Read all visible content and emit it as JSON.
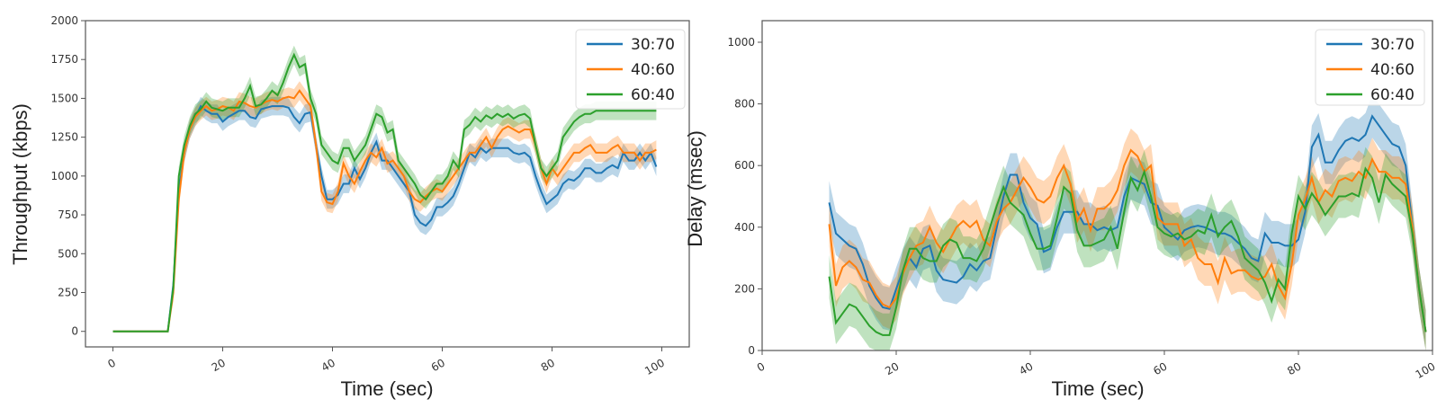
{
  "colors": {
    "30:70": "#1f77b4",
    "40:60": "#ff7f0e",
    "60:40": "#2ca02c"
  },
  "chart_data": [
    {
      "type": "line",
      "xlabel": "Time (sec)",
      "ylabel": "Throughput (kbps)",
      "xlim": [
        -5,
        105
      ],
      "ylim": [
        -100,
        2000
      ],
      "xticks": [
        0,
        20,
        40,
        60,
        80,
        100
      ],
      "yticks": [
        0,
        250,
        500,
        750,
        1000,
        1250,
        1500,
        1750,
        2000
      ],
      "grid": false,
      "legend_placement": "top-right",
      "x_start": 0,
      "band_halfwidth": 60,
      "series": [
        {
          "name": "30:70",
          "values": [
            0,
            0,
            0,
            0,
            0,
            0,
            0,
            0,
            0,
            0,
            0,
            300,
            900,
            1150,
            1300,
            1380,
            1450,
            1420,
            1400,
            1400,
            1350,
            1380,
            1400,
            1420,
            1420,
            1380,
            1370,
            1430,
            1440,
            1450,
            1450,
            1450,
            1440,
            1380,
            1340,
            1400,
            1410,
            1200,
            1000,
            850,
            850,
            880,
            950,
            950,
            1050,
            980,
            1050,
            1150,
            1220,
            1100,
            1100,
            1050,
            1000,
            950,
            900,
            750,
            700,
            680,
            720,
            800,
            800,
            830,
            870,
            950,
            1050,
            1150,
            1120,
            1180,
            1150,
            1180,
            1180,
            1180,
            1180,
            1150,
            1140,
            1150,
            1120,
            1000,
            900,
            820,
            850,
            880,
            950,
            980,
            970,
            1000,
            1050,
            1050,
            1020,
            1020,
            1050,
            1070,
            1050,
            1150,
            1100,
            1100,
            1150,
            1100,
            1150,
            1060
          ]
        },
        {
          "name": "40:60",
          "values": [
            0,
            0,
            0,
            0,
            0,
            0,
            0,
            0,
            0,
            0,
            0,
            250,
            850,
            1150,
            1300,
            1380,
            1420,
            1450,
            1420,
            1430,
            1450,
            1440,
            1420,
            1480,
            1470,
            1450,
            1440,
            1460,
            1480,
            1490,
            1480,
            1500,
            1510,
            1500,
            1550,
            1500,
            1450,
            1200,
            900,
            830,
            820,
            900,
            1080,
            1000,
            950,
            1030,
            1100,
            1150,
            1120,
            1180,
            1080,
            1100,
            1050,
            1000,
            900,
            850,
            830,
            870,
            900,
            920,
            900,
            950,
            1000,
            1050,
            1100,
            1150,
            1150,
            1200,
            1250,
            1180,
            1250,
            1300,
            1320,
            1300,
            1280,
            1300,
            1300,
            1200,
            1050,
            950,
            1050,
            1000,
            1050,
            1100,
            1150,
            1150,
            1180,
            1200,
            1150,
            1150,
            1150,
            1180,
            1200,
            1150,
            1150,
            1150,
            1100,
            1150,
            1150,
            1170
          ]
        },
        {
          "name": "60:40",
          "values": [
            0,
            0,
            0,
            0,
            0,
            0,
            0,
            0,
            0,
            0,
            0,
            280,
            1000,
            1200,
            1320,
            1400,
            1430,
            1480,
            1440,
            1430,
            1420,
            1440,
            1440,
            1440,
            1500,
            1580,
            1450,
            1460,
            1500,
            1550,
            1520,
            1600,
            1700,
            1780,
            1700,
            1720,
            1500,
            1400,
            1200,
            1150,
            1100,
            1080,
            1180,
            1180,
            1100,
            1150,
            1200,
            1300,
            1400,
            1380,
            1280,
            1300,
            1100,
            1050,
            1000,
            950,
            880,
            850,
            900,
            950,
            950,
            1000,
            1100,
            1050,
            1300,
            1330,
            1380,
            1350,
            1390,
            1370,
            1400,
            1380,
            1400,
            1370,
            1390,
            1400,
            1370,
            1200,
            1050,
            1000,
            1050,
            1100,
            1250,
            1300,
            1350,
            1380,
            1400,
            1400,
            1420,
            1420,
            1420,
            1420,
            1420,
            1420,
            1420,
            1420,
            1420,
            1420,
            1420,
            1420
          ]
        }
      ]
    },
    {
      "type": "line",
      "xlabel": "Time (sec)",
      "ylabel": "Delay (msec)",
      "xlim": [
        0,
        100
      ],
      "ylim": [
        0,
        1070
      ],
      "xticks": [
        0,
        20,
        40,
        60,
        80,
        100
      ],
      "yticks": [
        0,
        200,
        400,
        600,
        800,
        1000
      ],
      "grid": false,
      "legend_placement": "top-right",
      "x_start": 10,
      "band_halfwidth": 70,
      "series": [
        {
          "name": "30:70",
          "values": [
            480,
            380,
            360,
            340,
            330,
            280,
            210,
            170,
            140,
            135,
            200,
            260,
            300,
            270,
            330,
            340,
            260,
            230,
            225,
            220,
            240,
            280,
            260,
            290,
            300,
            400,
            500,
            570,
            570,
            480,
            430,
            410,
            320,
            330,
            400,
            450,
            450,
            450,
            410,
            410,
            390,
            400,
            390,
            400,
            500,
            560,
            550,
            540,
            480,
            470,
            400,
            380,
            360,
            390,
            400,
            405,
            400,
            390,
            380,
            380,
            370,
            350,
            330,
            300,
            290,
            380,
            350,
            350,
            340,
            340,
            360,
            450,
            660,
            700,
            610,
            610,
            650,
            680,
            690,
            680,
            700,
            760,
            730,
            700,
            670,
            660,
            600,
            400,
            200,
            60
          ]
        },
        {
          "name": "40:60",
          "values": [
            410,
            210,
            270,
            290,
            270,
            230,
            220,
            180,
            150,
            140,
            170,
            250,
            300,
            340,
            350,
            400,
            350,
            320,
            360,
            400,
            420,
            400,
            420,
            360,
            340,
            420,
            460,
            480,
            520,
            560,
            530,
            490,
            480,
            500,
            560,
            600,
            540,
            420,
            460,
            390,
            460,
            460,
            480,
            520,
            600,
            650,
            630,
            580,
            600,
            430,
            410,
            410,
            410,
            340,
            360,
            300,
            280,
            280,
            220,
            300,
            250,
            260,
            260,
            240,
            230,
            240,
            280,
            210,
            170,
            280,
            440,
            490,
            560,
            480,
            520,
            500,
            550,
            560,
            550,
            580,
            560,
            620,
            580,
            580,
            560,
            560,
            540,
            400,
            200,
            60
          ]
        },
        {
          "name": "60:40",
          "values": [
            240,
            90,
            120,
            150,
            140,
            110,
            80,
            60,
            50,
            50,
            140,
            260,
            330,
            330,
            300,
            290,
            290,
            340,
            360,
            350,
            300,
            300,
            290,
            330,
            400,
            470,
            530,
            480,
            460,
            440,
            380,
            330,
            330,
            340,
            430,
            530,
            510,
            390,
            340,
            340,
            350,
            360,
            400,
            330,
            450,
            560,
            520,
            580,
            500,
            400,
            380,
            370,
            380,
            360,
            370,
            390,
            380,
            440,
            370,
            400,
            420,
            370,
            300,
            280,
            260,
            220,
            160,
            230,
            200,
            380,
            500,
            460,
            510,
            480,
            440,
            470,
            500,
            500,
            510,
            500,
            590,
            560,
            480,
            570,
            540,
            520,
            500,
            380,
            200,
            60
          ]
        }
      ]
    }
  ]
}
